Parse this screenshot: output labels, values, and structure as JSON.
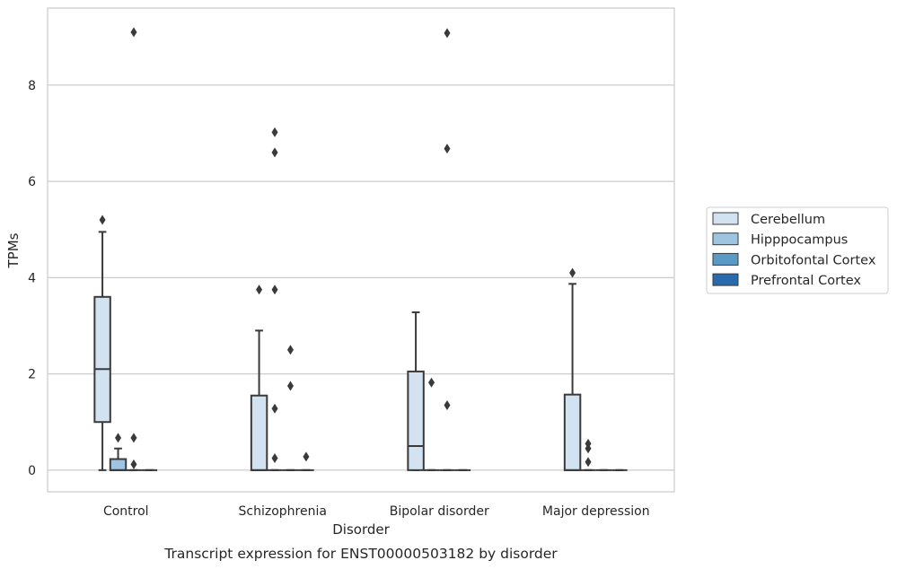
{
  "chart_data": {
    "type": "box",
    "caption": "Transcript expression for ENST00000503182 by disorder",
    "xlabel": "Disorder",
    "ylabel": "TPMs",
    "ylim": [
      -0.45,
      9.6
    ],
    "yticks": [
      0,
      2,
      4,
      6,
      8
    ],
    "grid": "horizontal",
    "legend_position": "right",
    "categories": [
      "Control",
      "Schizophrenia",
      "Bipolar disorder",
      "Major depression"
    ],
    "series": [
      {
        "name": "Cerebellum",
        "color": "#d3e2f1",
        "boxes": [
          {
            "category": "Control",
            "whislo": 0.0,
            "q1": 1.0,
            "med": 2.1,
            "q3": 3.6,
            "whishi": 4.95,
            "fliers": [
              5.2
            ]
          },
          {
            "category": "Schizophrenia",
            "whislo": 0.0,
            "q1": 0.0,
            "med": 0.0,
            "q3": 1.55,
            "whishi": 2.9,
            "fliers": [
              3.75
            ]
          },
          {
            "category": "Bipolar disorder",
            "whislo": 0.0,
            "q1": 0.0,
            "med": 0.5,
            "q3": 2.05,
            "whishi": 3.28,
            "fliers": []
          },
          {
            "category": "Major depression",
            "whislo": 0.0,
            "q1": 0.0,
            "med": 0.0,
            "q3": 1.57,
            "whishi": 3.87,
            "fliers": [
              4.1
            ]
          }
        ]
      },
      {
        "name": "Hipppocampus",
        "color": "#9dc4e0",
        "boxes": [
          {
            "category": "Control",
            "whislo": 0.0,
            "q1": 0.0,
            "med": 0.0,
            "q3": 0.23,
            "whishi": 0.45,
            "fliers": [
              0.67
            ]
          },
          {
            "category": "Schizophrenia",
            "whislo": 0.0,
            "q1": 0.0,
            "med": 0.0,
            "q3": 0.0,
            "whishi": 0.0,
            "fliers": [
              0.25,
              1.28,
              3.75,
              6.6,
              7.02
            ]
          },
          {
            "category": "Bipolar disorder",
            "whislo": 0.0,
            "q1": 0.0,
            "med": 0.0,
            "q3": 0.0,
            "whishi": 0.0,
            "fliers": [
              1.82
            ]
          },
          {
            "category": "Major depression",
            "whislo": 0.0,
            "q1": 0.0,
            "med": 0.0,
            "q3": 0.0,
            "whishi": 0.0,
            "fliers": [
              0.17,
              0.45,
              0.55
            ]
          }
        ]
      },
      {
        "name": "Orbitofontal Cortex",
        "color": "#5a9ac6",
        "boxes": [
          {
            "category": "Control",
            "whislo": 0.0,
            "q1": 0.0,
            "med": 0.0,
            "q3": 0.0,
            "whishi": 0.0,
            "fliers": [
              0.12,
              0.67,
              9.1
            ]
          },
          {
            "category": "Schizophrenia",
            "whislo": 0.0,
            "q1": 0.0,
            "med": 0.0,
            "q3": 0.0,
            "whishi": 0.0,
            "fliers": [
              1.75,
              2.5
            ]
          },
          {
            "category": "Bipolar disorder",
            "whislo": 0.0,
            "q1": 0.0,
            "med": 0.0,
            "q3": 0.0,
            "whishi": 0.0,
            "fliers": [
              1.35,
              6.68,
              9.08
            ]
          },
          {
            "category": "Major depression",
            "whislo": 0.0,
            "q1": 0.0,
            "med": 0.0,
            "q3": 0.0,
            "whishi": 0.0,
            "fliers": []
          }
        ]
      },
      {
        "name": "Prefrontal Cortex",
        "color": "#2a6aac",
        "boxes": [
          {
            "category": "Control",
            "whislo": 0.0,
            "q1": 0.0,
            "med": 0.0,
            "q3": 0.0,
            "whishi": 0.0,
            "fliers": []
          },
          {
            "category": "Schizophrenia",
            "whislo": 0.0,
            "q1": 0.0,
            "med": 0.0,
            "q3": 0.0,
            "whishi": 0.0,
            "fliers": [
              0.28
            ]
          },
          {
            "category": "Bipolar disorder",
            "whislo": 0.0,
            "q1": 0.0,
            "med": 0.0,
            "q3": 0.0,
            "whishi": 0.0,
            "fliers": []
          },
          {
            "category": "Major depression",
            "whislo": 0.0,
            "q1": 0.0,
            "med": 0.0,
            "q3": 0.0,
            "whishi": 0.0,
            "fliers": []
          }
        ]
      }
    ]
  }
}
